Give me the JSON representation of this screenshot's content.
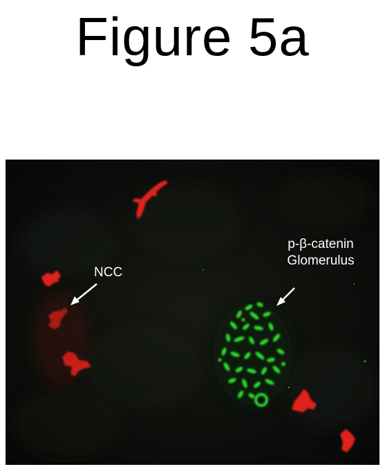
{
  "figure": {
    "title": "Figure 5a"
  },
  "micrograph": {
    "background_color": "#0a0c09",
    "ncc_stain_color": "#e0231c",
    "glomerulus_stain_color": "#2bd82b",
    "labels": {
      "ncc": "NCC",
      "pbc_line1": "p-β-catenin",
      "pbc_line2": "Glomerulus"
    }
  }
}
